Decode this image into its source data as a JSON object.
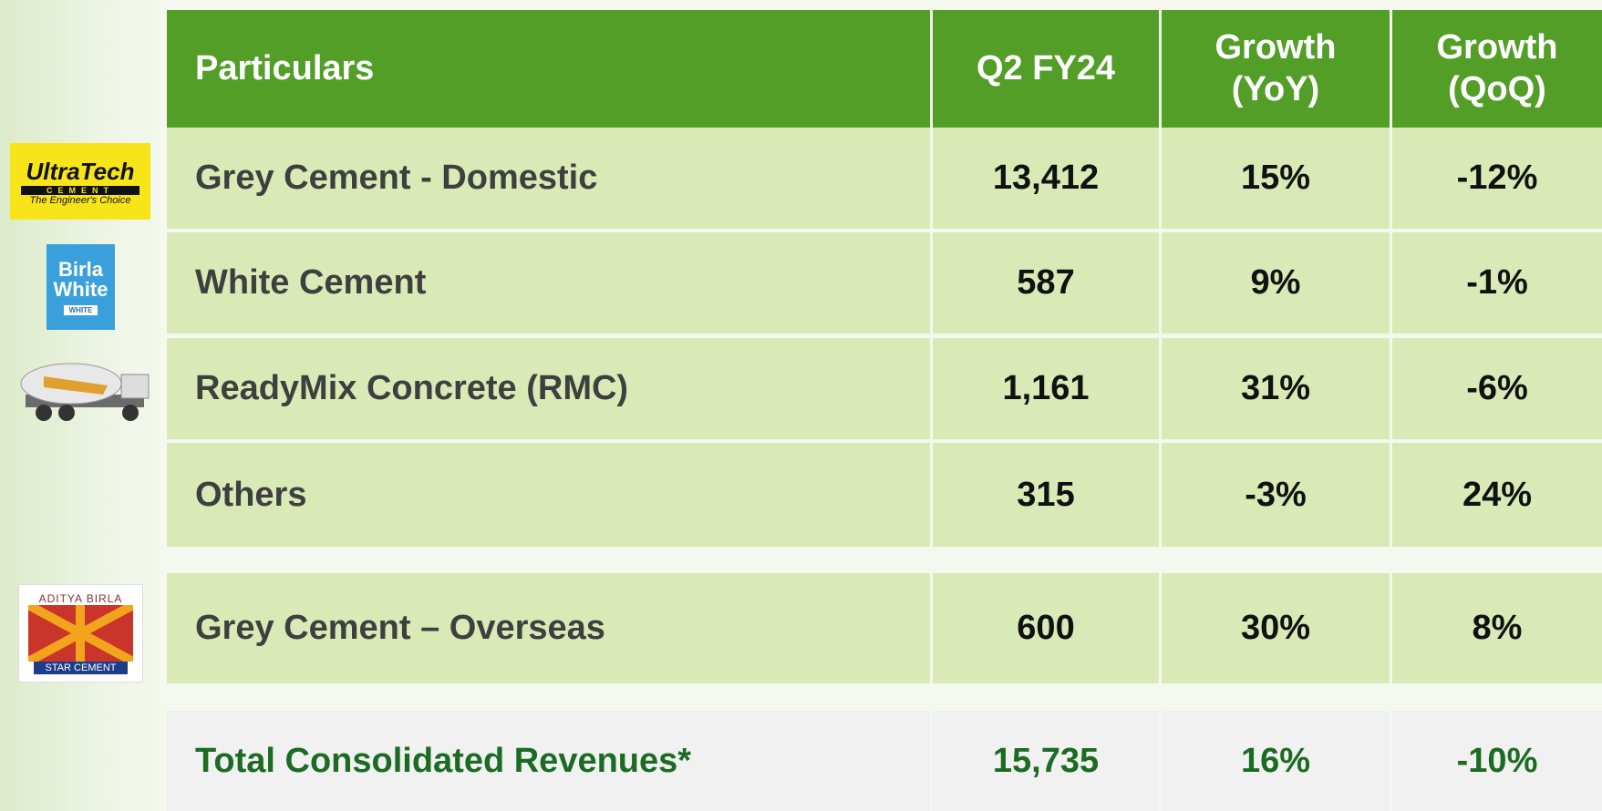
{
  "table": {
    "header": [
      "Particulars",
      "Q2 FY24",
      "Growth (YoY)",
      "Growth (QoQ)"
    ],
    "rows": [
      [
        "Grey Cement - Domestic",
        "13,412",
        "15%",
        "-12%"
      ],
      [
        "White Cement",
        "587",
        "9%",
        "-1%"
      ],
      [
        "ReadyMix Concrete (RMC)",
        "1,161",
        "31%",
        "-6%"
      ],
      [
        "Others",
        "315",
        "-3%",
        "24%"
      ],
      [
        "Grey Cement – Overseas",
        "600",
        "30%",
        "8%"
      ]
    ],
    "total": [
      "Total Consolidated Revenues*",
      "15,735",
      "16%",
      "-10%"
    ]
  },
  "logos": {
    "ultratech": {
      "name": "UltraTech",
      "sub": "CEMENT",
      "tagline": "The Engineer's Choice"
    },
    "birla_white": {
      "name": "Birla White",
      "sub": "WHITE"
    },
    "star": {
      "top": "ADITYA BIRLA",
      "bottom": "STAR CEMENT"
    }
  }
}
